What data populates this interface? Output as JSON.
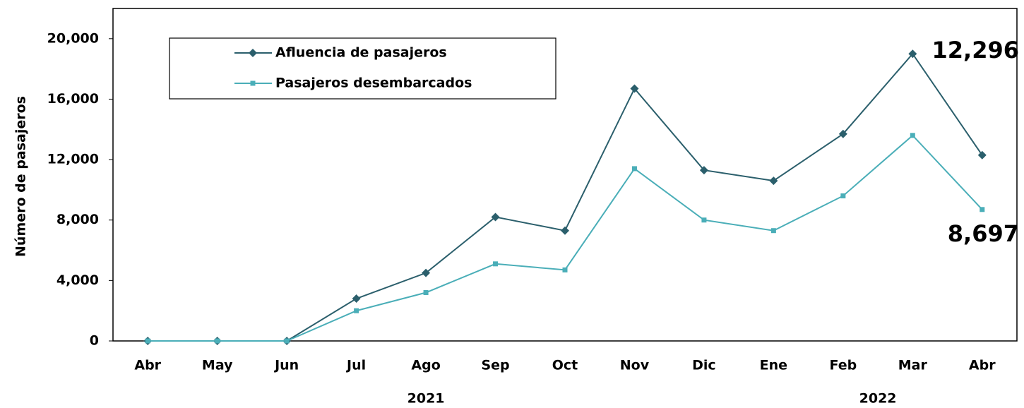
{
  "chart_data": {
    "type": "line",
    "y_label": "Número de pasajeros",
    "categories": [
      "Abr",
      "May",
      "Jun",
      "Jul",
      "Ago",
      "Sep",
      "Oct",
      "Nov",
      "Dic",
      "Ene",
      "Feb",
      "Mar",
      "Abr"
    ],
    "year_groups": [
      {
        "label": "2021",
        "start": 0,
        "end": 8
      },
      {
        "label": "2022",
        "start": 9,
        "end": 12
      }
    ],
    "series": [
      {
        "name": "Afluencia de pasajeros",
        "color": "#2b5f6c",
        "marker": "diamond",
        "values": [
          0,
          0,
          0,
          2800,
          4500,
          8200,
          7300,
          16700,
          11300,
          10600,
          13700,
          19000,
          12296
        ],
        "value_labels": [
          null,
          null,
          null,
          null,
          null,
          null,
          null,
          null,
          null,
          null,
          null,
          null,
          "12,296"
        ]
      },
      {
        "name": "Pasajeros desembarcados",
        "color": "#4aaeb8",
        "marker": "square",
        "values": [
          0,
          0,
          0,
          2000,
          3200,
          5100,
          4700,
          11400,
          8000,
          7300,
          9600,
          13600,
          8697
        ],
        "value_labels": [
          null,
          null,
          null,
          null,
          null,
          null,
          null,
          null,
          null,
          null,
          null,
          null,
          "8,697"
        ]
      }
    ],
    "ylim": [
      0,
      22000
    ],
    "yticks": [
      {
        "value": 0,
        "label": "0"
      },
      {
        "value": 4000,
        "label": "4,000"
      },
      {
        "value": 8000,
        "label": "8,000"
      },
      {
        "value": 12000,
        "label": "12,000"
      },
      {
        "value": 16000,
        "label": "16,000"
      },
      {
        "value": 20000,
        "label": "20,000"
      }
    ],
    "grid": false
  }
}
